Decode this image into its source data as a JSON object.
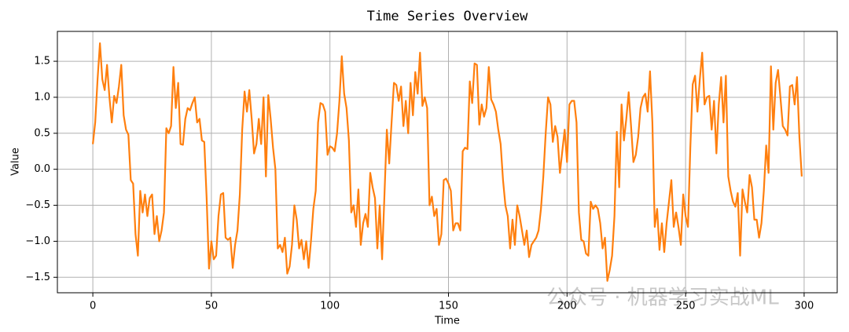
{
  "chart_data": {
    "type": "line",
    "title": "Time Series Overview",
    "x_label": "Time",
    "y_label": "Value",
    "watermark": "公众号 · 机器学习实战ML",
    "color": "#ff7f0e",
    "grid": true,
    "xlim": [
      -14.95,
      313.95
    ],
    "ylim": [
      -1.715,
      1.915
    ],
    "xticks": [
      0,
      50,
      100,
      150,
      200,
      250,
      300
    ],
    "yticks": [
      {
        "value": -1.5,
        "label": "−1.5"
      },
      {
        "value": -1.0,
        "label": "−1.0"
      },
      {
        "value": -0.5,
        "label": "−0.5"
      },
      {
        "value": 0.0,
        "label": "0.0"
      },
      0.5,
      {
        "value": 1.0,
        "label": "1.0"
      },
      1.5
    ],
    "x": [
      0,
      1,
      2,
      3,
      4,
      5,
      6,
      7,
      8,
      9,
      10,
      11,
      12,
      13,
      14,
      15,
      16,
      17,
      18,
      19,
      20,
      21,
      22,
      23,
      24,
      25,
      26,
      27,
      28,
      29,
      30,
      31,
      32,
      33,
      34,
      35,
      36,
      37,
      38,
      39,
      40,
      41,
      42,
      43,
      44,
      45,
      46,
      47,
      48,
      49,
      50,
      51,
      52,
      53,
      54,
      55,
      56,
      57,
      58,
      59,
      60,
      61,
      62,
      63,
      64,
      65,
      66,
      67,
      68,
      69,
      70,
      71,
      72,
      73,
      74,
      75,
      76,
      77,
      78,
      79,
      80,
      81,
      82,
      83,
      84,
      85,
      86,
      87,
      88,
      89,
      90,
      91,
      92,
      93,
      94,
      95,
      96,
      97,
      98,
      99,
      100,
      101,
      102,
      103,
      104,
      105,
      106,
      107,
      108,
      109,
      110,
      111,
      112,
      113,
      114,
      115,
      116,
      117,
      118,
      119,
      120,
      121,
      122,
      123,
      124,
      125,
      126,
      127,
      128,
      129,
      130,
      131,
      132,
      133,
      134,
      135,
      136,
      137,
      138,
      139,
      140,
      141,
      142,
      143,
      144,
      145,
      146,
      147,
      148,
      149,
      150,
      151,
      152,
      153,
      154,
      155,
      156,
      157,
      158,
      159,
      160,
      161,
      162,
      163,
      164,
      165,
      166,
      167,
      168,
      169,
      170,
      171,
      172,
      173,
      174,
      175,
      176,
      177,
      178,
      179,
      180,
      181,
      182,
      183,
      184,
      185,
      186,
      187,
      188,
      189,
      190,
      191,
      192,
      193,
      194,
      195,
      196,
      197,
      198,
      199,
      200,
      201,
      202,
      203,
      204,
      205,
      206,
      207,
      208,
      209,
      210,
      211,
      212,
      213,
      214,
      215,
      216,
      217,
      218,
      219,
      220,
      221,
      222,
      223,
      224,
      225,
      226,
      227,
      228,
      229,
      230,
      231,
      232,
      233,
      234,
      235,
      236,
      237,
      238,
      239,
      240,
      241,
      242,
      243,
      244,
      245,
      246,
      247,
      248,
      249,
      250,
      251,
      252,
      253,
      254,
      255,
      256,
      257,
      258,
      259,
      260,
      261,
      262,
      263,
      264,
      265,
      266,
      267,
      268,
      269,
      270,
      271,
      272,
      273,
      274,
      275,
      276,
      277,
      278,
      279,
      280,
      281,
      282,
      283,
      284,
      285,
      286,
      287,
      288,
      289,
      290,
      291,
      292,
      293,
      294,
      295,
      296,
      297,
      298,
      299
    ],
    "values": [
      0.35,
      0.65,
      1.25,
      1.75,
      1.25,
      1.1,
      1.45,
      1.0,
      0.65,
      1.02,
      0.92,
      1.15,
      1.45,
      0.75,
      0.55,
      0.48,
      -0.15,
      -0.2,
      -0.9,
      -1.2,
      -0.3,
      -0.6,
      -0.35,
      -0.65,
      -0.4,
      -0.35,
      -0.9,
      -0.65,
      -1.0,
      -0.85,
      -0.6,
      0.57,
      0.5,
      0.6,
      1.42,
      0.85,
      1.2,
      0.35,
      0.34,
      0.7,
      0.85,
      0.82,
      0.92,
      1.0,
      0.65,
      0.7,
      0.4,
      0.38,
      -0.4,
      -1.38,
      -1.0,
      -1.25,
      -1.2,
      -0.65,
      -0.35,
      -0.33,
      -0.95,
      -0.98,
      -0.95,
      -1.37,
      -1.05,
      -0.85,
      -0.35,
      0.55,
      1.08,
      0.8,
      1.1,
      0.7,
      0.22,
      0.35,
      0.7,
      0.35,
      1.0,
      -0.1,
      1.03,
      0.7,
      0.3,
      0.0,
      -1.1,
      -1.05,
      -1.15,
      -0.95,
      -1.45,
      -1.35,
      -1.05,
      -0.5,
      -0.7,
      -1.1,
      -0.98,
      -1.25,
      -1.0,
      -1.37,
      -1.0,
      -0.55,
      -0.3,
      0.65,
      0.92,
      0.9,
      0.8,
      0.2,
      0.32,
      0.3,
      0.25,
      0.5,
      0.95,
      1.57,
      1.05,
      0.85,
      0.4,
      -0.6,
      -0.5,
      -0.8,
      -0.28,
      -1.05,
      -0.75,
      -0.62,
      -0.8,
      -0.05,
      -0.25,
      -0.4,
      -1.1,
      -0.5,
      -1.25,
      -0.35,
      0.55,
      0.08,
      0.65,
      1.2,
      1.17,
      0.95,
      1.15,
      0.6,
      0.95,
      0.5,
      1.2,
      0.75,
      1.35,
      1.05,
      1.62,
      0.88,
      1.0,
      0.85,
      -0.5,
      -0.38,
      -0.65,
      -0.55,
      -1.05,
      -0.9,
      -0.15,
      -0.13,
      -0.2,
      -0.3,
      -0.85,
      -0.75,
      -0.75,
      -0.85,
      0.25,
      0.3,
      0.28,
      1.22,
      0.92,
      1.47,
      1.45,
      0.62,
      0.9,
      0.73,
      0.85,
      1.42,
      0.97,
      0.9,
      0.8,
      0.55,
      0.35,
      -0.15,
      -0.5,
      -0.65,
      -1.1,
      -0.7,
      -1.05,
      -0.5,
      -0.65,
      -0.85,
      -1.05,
      -0.85,
      -1.22,
      -1.05,
      -1.0,
      -0.95,
      -0.85,
      -0.55,
      -0.1,
      0.5,
      1.0,
      0.9,
      0.38,
      0.6,
      0.45,
      -0.05,
      0.25,
      0.55,
      0.1,
      0.9,
      0.95,
      0.95,
      0.65,
      -0.6,
      -0.98,
      -1.0,
      -1.17,
      -1.2,
      -0.45,
      -0.55,
      -0.5,
      -0.55,
      -0.75,
      -1.1,
      -0.95,
      -1.55,
      -1.4,
      -1.2,
      -0.65,
      0.52,
      -0.25,
      0.9,
      0.4,
      0.7,
      1.07,
      0.6,
      0.1,
      0.2,
      0.45,
      0.85,
      1.0,
      1.05,
      0.8,
      1.36,
      0.65,
      -0.8,
      -0.55,
      -1.12,
      -0.75,
      -1.15,
      -0.75,
      -0.45,
      -0.15,
      -0.8,
      -0.6,
      -0.8,
      -1.05,
      -0.35,
      -0.65,
      -0.8,
      0.3,
      1.18,
      1.3,
      0.8,
      1.25,
      1.62,
      0.9,
      1.0,
      1.02,
      0.55,
      0.95,
      0.22,
      0.9,
      1.28,
      0.65,
      1.3,
      -0.1,
      -0.3,
      -0.45,
      -0.52,
      -0.33,
      -1.2,
      -0.28,
      -0.45,
      -0.6,
      -0.08,
      -0.25,
      -0.7,
      -0.7,
      -0.95,
      -0.75,
      -0.3,
      0.33,
      -0.05,
      1.43,
      0.55,
      1.2,
      1.38,
      1.0,
      0.6,
      0.55,
      0.47,
      1.15,
      1.17,
      0.9,
      1.28,
      0.45,
      -0.1
    ]
  }
}
